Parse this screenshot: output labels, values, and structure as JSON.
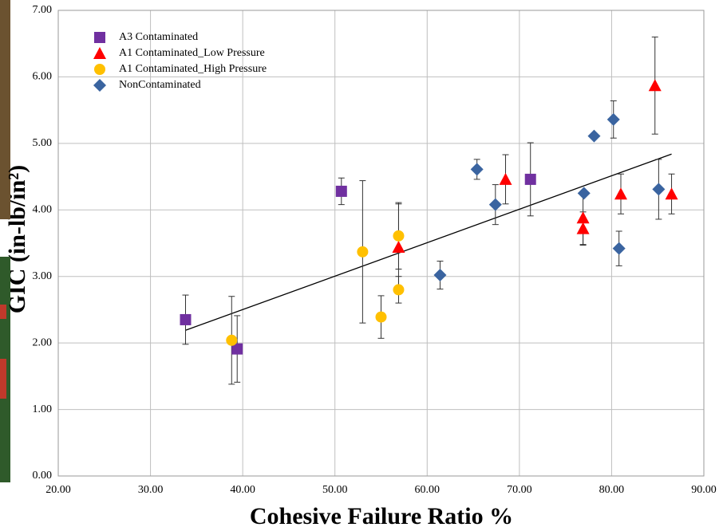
{
  "chart_data": {
    "type": "scatter",
    "xlabel": "Cohesive Failure Ratio %",
    "ylabel": "GIC (in-lb/in²)",
    "xlim": [
      20,
      90
    ],
    "ylim": [
      0,
      7
    ],
    "xticks": [
      {
        "value": 20,
        "label": "20.00"
      },
      {
        "value": 30,
        "label": "30.00"
      },
      {
        "value": 40,
        "label": "40.00"
      },
      {
        "value": 50,
        "label": "50.00"
      },
      {
        "value": 60,
        "label": "60.00"
      },
      {
        "value": 70,
        "label": "70.00"
      },
      {
        "value": 80,
        "label": "80.00"
      },
      {
        "value": 90,
        "label": "90.00"
      }
    ],
    "yticks": [
      {
        "value": 0,
        "label": "0.00"
      },
      {
        "value": 1,
        "label": "1.00"
      },
      {
        "value": 2,
        "label": "2.00"
      },
      {
        "value": 3,
        "label": "3.00"
      },
      {
        "value": 4,
        "label": "4.00"
      },
      {
        "value": 5,
        "label": "5.00"
      },
      {
        "value": 6,
        "label": "6.00"
      },
      {
        "value": 7,
        "label": "7.00"
      }
    ],
    "grid": true,
    "legend": "top-left",
    "series": [
      {
        "name": "A3 Contaminated",
        "color": "#7030a0",
        "marker": "square",
        "x": [
          33.8,
          39.4,
          50.7,
          71.2
        ],
        "y": [
          2.35,
          1.91,
          4.28,
          4.46
        ],
        "errors": [
          0.37,
          0.5,
          0.2,
          0.55
        ]
      },
      {
        "name": "A1 Contaminated_Low Pressure",
        "color": "#ff0000",
        "marker": "triangle",
        "x": [
          56.9,
          68.5,
          76.9,
          76.9,
          84.7,
          81.0,
          86.5
        ],
        "y": [
          3.44,
          4.46,
          3.88,
          3.72,
          5.87,
          4.24,
          4.24
        ],
        "errors": [
          0.65,
          0.37,
          0.4,
          0.25,
          0.73,
          0.3,
          0.3
        ]
      },
      {
        "name": "A1 Contaminated_High Pressure",
        "color": "#ffc000",
        "marker": "circle",
        "x": [
          38.8,
          53.0,
          56.9,
          56.9,
          55.0
        ],
        "y": [
          2.04,
          3.37,
          3.61,
          2.8,
          2.39
        ],
        "errors": [
          0.66,
          1.07,
          0.5,
          0.2,
          0.32
        ]
      },
      {
        "name": "NonContaminated",
        "color": "#3a64a0",
        "marker": "diamond",
        "x": [
          61.4,
          65.4,
          67.4,
          77.0,
          78.1,
          80.2,
          80.8,
          85.1
        ],
        "y": [
          3.02,
          4.61,
          4.08,
          4.25,
          5.11,
          5.36,
          3.42,
          4.31
        ],
        "errors": [
          0.21,
          0.15,
          0.3,
          0,
          0,
          0.28,
          0.26,
          0.45
        ]
      }
    ],
    "trendline": {
      "x": [
        33.8,
        86.5
      ],
      "y": [
        2.19,
        4.84
      ]
    }
  }
}
